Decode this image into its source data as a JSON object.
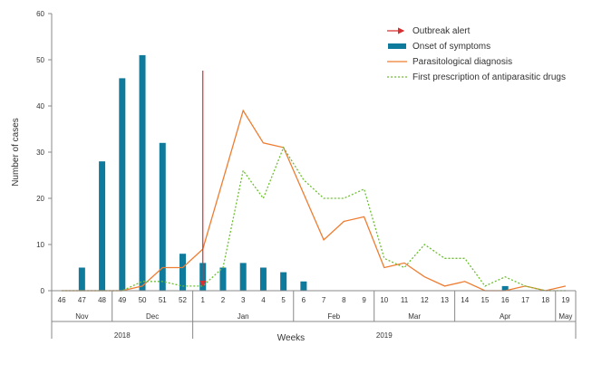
{
  "chart_data": {
    "type": "bar",
    "ylabel": "Number of cases",
    "xlabel": "Weeks",
    "ylim": [
      0,
      60
    ],
    "y_ticks": [
      0,
      10,
      20,
      30,
      40,
      50,
      60
    ],
    "grid": false,
    "legend_position": "top-right",
    "weeks": [
      "46",
      "47",
      "48",
      "49",
      "50",
      "51",
      "52",
      "1",
      "2",
      "3",
      "4",
      "5",
      "6",
      "7",
      "8",
      "9",
      "10",
      "11",
      "12",
      "13",
      "14",
      "15",
      "16",
      "17",
      "18",
      "19"
    ],
    "months": [
      {
        "label": "Nov",
        "from": 0,
        "to": 2
      },
      {
        "label": "Dec",
        "from": 3,
        "to": 6
      },
      {
        "label": "Jan",
        "from": 7,
        "to": 11
      },
      {
        "label": "Feb",
        "from": 12,
        "to": 15
      },
      {
        "label": "Mar",
        "from": 16,
        "to": 19
      },
      {
        "label": "Apr",
        "from": 20,
        "to": 24
      },
      {
        "label": "May",
        "from": 25,
        "to": 25
      }
    ],
    "years": [
      {
        "label": "2018",
        "from": 0,
        "to": 6
      },
      {
        "label": "2019",
        "from": 7,
        "to": 25
      }
    ],
    "outbreak_alert": {
      "label": "Outbreak alert",
      "week_position": 7.5
    },
    "series": [
      {
        "name": "Onset of symptoms",
        "type": "bar",
        "color": "#0e7a9c",
        "values": [
          0,
          5,
          28,
          46,
          51,
          32,
          8,
          6,
          5,
          6,
          5,
          4,
          2,
          0,
          0,
          0,
          0,
          0,
          0,
          0,
          0,
          0,
          1,
          0,
          0,
          0
        ]
      },
      {
        "name": "Parasitological diagnosis",
        "type": "line",
        "color": "#ee7d31",
        "dash": "solid",
        "values": [
          0,
          0,
          0,
          0,
          1,
          5,
          5,
          9,
          24,
          39,
          32,
          31,
          21,
          11,
          15,
          16,
          5,
          6,
          3,
          1,
          2,
          0,
          0,
          1,
          0,
          1
        ]
      },
      {
        "name": "First prescription of antiparasitic drugs",
        "type": "line",
        "color": "#6cbf2f",
        "dash": "dotted",
        "values": [
          0,
          0,
          0,
          0,
          2,
          2,
          1,
          1,
          5,
          26,
          20,
          31,
          24,
          20,
          20,
          22,
          7,
          5,
          10,
          7,
          7,
          1,
          3,
          1,
          0,
          0
        ]
      }
    ]
  },
  "legend_colors": {
    "alert": "#d62f2f",
    "axis": "#888888"
  }
}
